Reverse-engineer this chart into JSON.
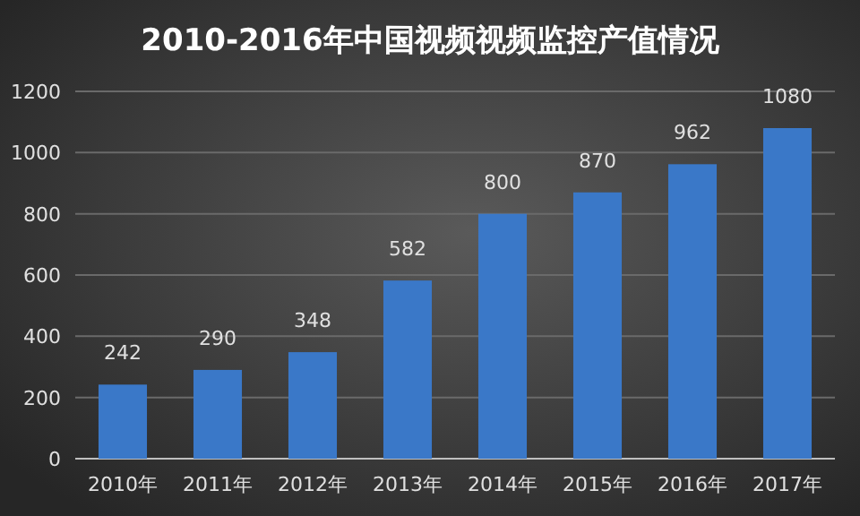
{
  "chart_data": {
    "type": "bar",
    "title": "2010-2016年中国视频视频监控产值情况",
    "categories": [
      "2010年",
      "2011年",
      "2012年",
      "2013年",
      "2014年",
      "2015年",
      "2016年",
      "2017年"
    ],
    "values": [
      242,
      290,
      348,
      582,
      800,
      870,
      962,
      1080
    ],
    "color": "#3a78c8",
    "ylim": [
      0,
      1200
    ],
    "yticks": [
      0,
      200,
      400,
      600,
      800,
      1000,
      1200
    ],
    "grid": "y",
    "data_labels": true
  }
}
